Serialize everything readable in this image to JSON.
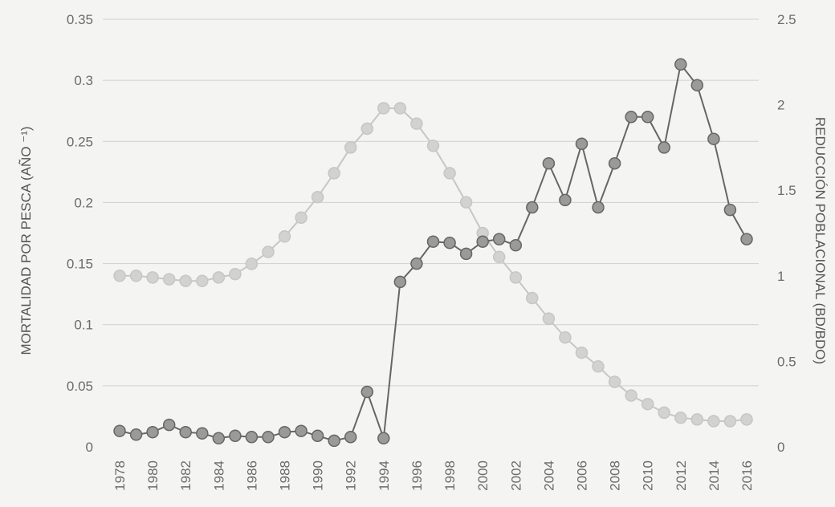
{
  "chart_data": {
    "type": "line",
    "ylabel_left": "MORTALIDAD POR PESCA (AÑO ⁻¹)",
    "ylabel_right": "REDUCCIÓN POBLACIONAL (BD/BDO)",
    "ylim_left": [
      0,
      0.35
    ],
    "ylim_right": [
      0,
      2.5
    ],
    "yticks_left": [
      "0",
      "0.05",
      "0.1",
      "0.15",
      "0.2",
      "0.25",
      "0.3",
      "0.35"
    ],
    "yticks_right": [
      "0",
      "0.5",
      "1",
      "1.5",
      "2",
      "2.5"
    ],
    "grid": true,
    "x": [
      1978,
      1979,
      1980,
      1981,
      1982,
      1983,
      1984,
      1985,
      1986,
      1987,
      1988,
      1989,
      1990,
      1991,
      1992,
      1993,
      1994,
      1995,
      1996,
      1997,
      1998,
      1999,
      2000,
      2001,
      2002,
      2003,
      2004,
      2005,
      2006,
      2007,
      2008,
      2009,
      2010,
      2011,
      2012,
      2013,
      2014,
      2015,
      2016
    ],
    "xtick_labels": [
      "1978",
      "1980",
      "1982",
      "1984",
      "1986",
      "1988",
      "1990",
      "1992",
      "1994",
      "1996",
      "1998",
      "2000",
      "2002",
      "2004",
      "2006",
      "2008",
      "2010",
      "2012",
      "2014",
      "2016"
    ],
    "series": [
      {
        "axis": "left",
        "color": "#666666",
        "marker_fill": "#9a9a9a",
        "values": [
          0.013,
          0.01,
          0.012,
          0.018,
          0.012,
          0.011,
          0.007,
          0.009,
          0.008,
          0.008,
          0.012,
          0.013,
          0.009,
          0.005,
          0.008,
          0.045,
          0.007,
          0.135,
          0.15,
          0.168,
          0.167,
          0.158,
          0.168,
          0.17,
          0.165,
          0.196,
          0.232,
          0.202,
          0.248,
          0.196,
          0.232,
          0.27,
          0.27,
          0.245,
          0.313,
          0.296,
          0.252,
          0.194,
          0.17
        ]
      },
      {
        "axis": "right",
        "color": "#c6c6c6",
        "marker_fill": "#d2d2d2",
        "values": [
          1.0,
          1.0,
          0.99,
          0.98,
          0.97,
          0.97,
          0.99,
          1.01,
          1.07,
          1.14,
          1.23,
          1.34,
          1.46,
          1.6,
          1.75,
          1.86,
          1.98,
          1.98,
          1.89,
          1.76,
          1.6,
          1.43,
          1.25,
          1.11,
          0.99,
          0.87,
          0.75,
          0.64,
          0.55,
          0.47,
          0.38,
          0.3,
          0.25,
          0.2,
          0.17,
          0.16,
          0.15,
          0.15,
          0.16
        ]
      }
    ]
  }
}
